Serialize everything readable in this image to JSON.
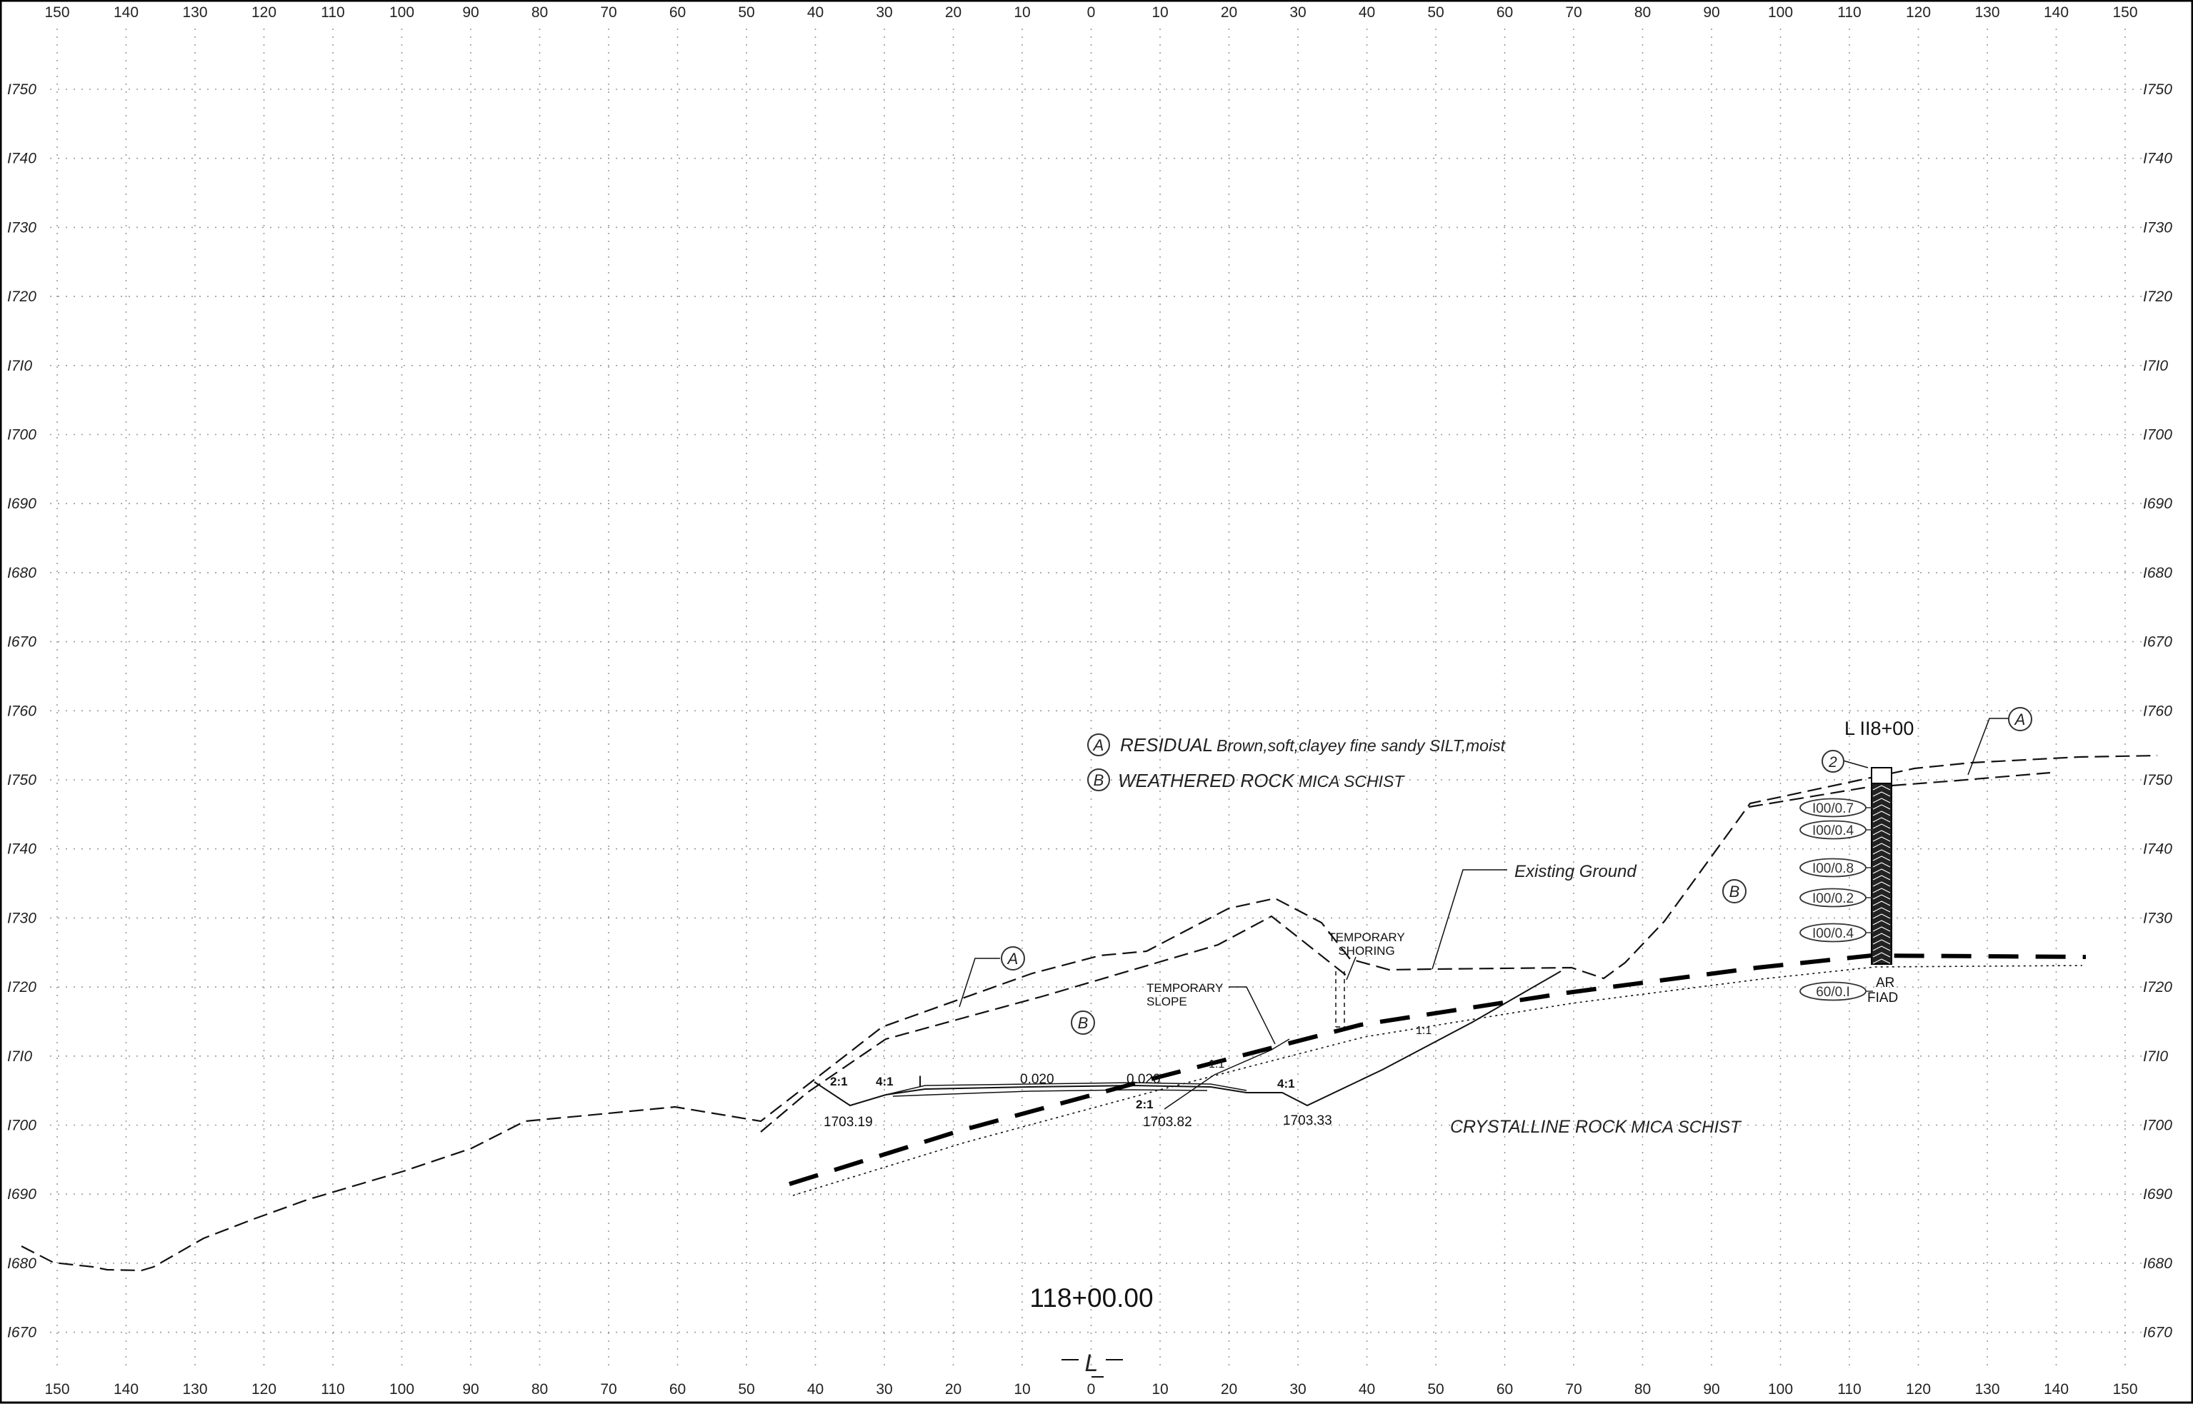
{
  "x_axis": {
    "ticks": [
      "150",
      "140",
      "130",
      "120",
      "110",
      "100",
      "90",
      "80",
      "70",
      "60",
      "50",
      "40",
      "30",
      "20",
      "10",
      "0",
      "10",
      "20",
      "30",
      "40",
      "50",
      "60",
      "70",
      "80",
      "90",
      "100",
      "110",
      "120",
      "130",
      "140",
      "150"
    ]
  },
  "y_axis": {
    "ticks": [
      "I750",
      "I740",
      "I730",
      "I720",
      "I7I0",
      "I700",
      "I690",
      "I680",
      "I670",
      "I760",
      "I750",
      "I740",
      "I730",
      "I720",
      "I7I0",
      "I700",
      "I690",
      "I680",
      "I670"
    ]
  },
  "legend": {
    "a_symbol": "A",
    "a_title": "RESIDUAL",
    "a_desc": "Brown,soft,clayey fine sandy SILT,moist",
    "b_symbol": "B",
    "b_title": "WEATHERED ROCK",
    "b_desc": "MICA SCHIST"
  },
  "annotations": {
    "existing_ground": "Existing Ground",
    "temporary_shoring_1": "TEMPORARY",
    "temporary_shoring_2": "SHORING",
    "temporary_slope_1": "TEMPORARY",
    "temporary_slope_2": "SLOPE",
    "crystalline_title": "CRYSTALLINE ROCK",
    "crystalline_desc": "MICA SCHIST",
    "station_label": "L  II8+00",
    "zone_a_left": "A",
    "zone_a_right": "A",
    "zone_b_mid": "B",
    "zone_b_right": "B",
    "boring_number": "2",
    "ar": "AR",
    "fiad": "FIAD",
    "station_title": "118+00.00",
    "centerline": "L",
    "slope_2_1_left": "2:1",
    "slope_4_1_left": "4:1",
    "slope_0020_left": "0.020",
    "slope_0020_right": "0.020",
    "slope_2_1_mid": "2:1",
    "slope_4_1_right": "4:1",
    "slope_1_1_a": "1:1",
    "slope_1_1_b": "1:1",
    "cl_mark": "I"
  },
  "elevations": {
    "left": "1703.19",
    "center": "1703.82",
    "right": "1703.33"
  },
  "spt_values": [
    "I00/0.7",
    "I00/0.4",
    "I00/0.8",
    "I00/0.2",
    "I00/0.4",
    "60/0.I"
  ]
}
